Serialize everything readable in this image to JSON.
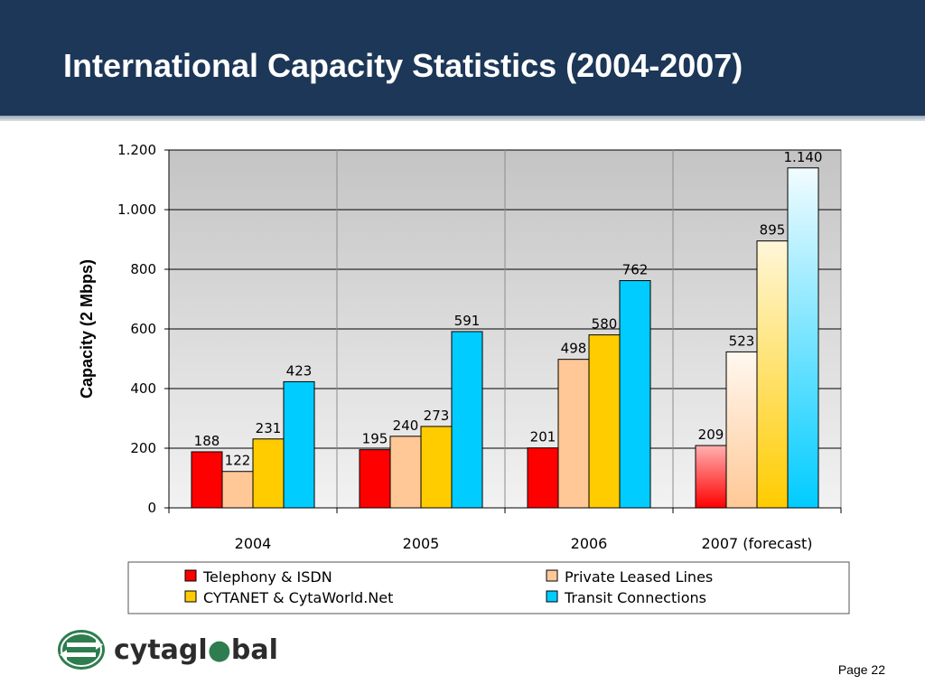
{
  "slide": {
    "title": "International Capacity Statistics (2004-2007)",
    "page": "Page 22",
    "logo_text": "cytagl●bal"
  },
  "colors": {
    "header_bg": "#1c3757",
    "telephony": "#ff0000",
    "private_leased": "#ffc896",
    "cytanet": "#ffcc00",
    "transit": "#00ccff",
    "plot_bg_top": "#c8c8c8",
    "plot_bg_bottom": "#f2f2f2"
  },
  "chart_data": {
    "type": "bar",
    "title": "",
    "xlabel": "",
    "ylabel": "Capacity (2 Mbps)",
    "ylim": [
      0,
      1200
    ],
    "yticks": [
      0,
      200,
      400,
      600,
      800,
      1000,
      1200
    ],
    "ytick_labels": [
      "0",
      "200",
      "400",
      "600",
      "800",
      "1.000",
      "1.200"
    ],
    "categories": [
      "2004",
      "2005",
      "2006",
      "2007 (forecast)"
    ],
    "grid": true,
    "legend_position": "bottom",
    "series": [
      {
        "name": "Telephony & ISDN",
        "color": "#ff0000",
        "values": [
          188,
          195,
          201,
          209
        ],
        "labels": [
          "188",
          "195",
          "201",
          "209"
        ]
      },
      {
        "name": "Private Leased Lines",
        "color": "#ffc896",
        "values": [
          122,
          240,
          498,
          523
        ],
        "labels": [
          "122",
          "240",
          "498",
          "523"
        ]
      },
      {
        "name": "CYTANET & CytaWorld.Net",
        "color": "#ffcc00",
        "values": [
          231,
          273,
          580,
          895
        ],
        "labels": [
          "231",
          "273",
          "580",
          "895"
        ]
      },
      {
        "name": "Transit Connections",
        "color": "#00ccff",
        "values": [
          423,
          591,
          762,
          1140
        ],
        "labels": [
          "423",
          "591",
          "762",
          "1.140"
        ]
      }
    ]
  }
}
